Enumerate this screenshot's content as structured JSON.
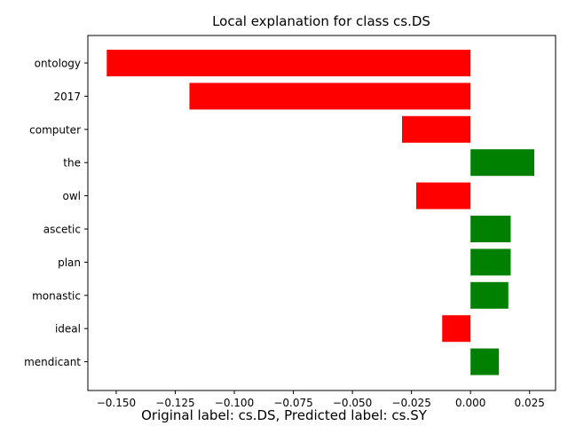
{
  "chart_data": {
    "type": "bar",
    "orientation": "horizontal",
    "title": "Local explanation for class cs.DS",
    "xlabel": "",
    "ylabel": "",
    "categories": [
      "ontology",
      "2017",
      "computer",
      "the",
      "owl",
      "ascetic",
      "plan",
      "monastic",
      "ideal",
      "mendicant"
    ],
    "values": [
      -0.154,
      -0.119,
      -0.029,
      0.027,
      -0.023,
      0.017,
      0.017,
      0.016,
      -0.012,
      0.012
    ],
    "xlim": [
      -0.162,
      0.036
    ],
    "xticks": [
      -0.15,
      -0.125,
      -0.1,
      -0.075,
      -0.05,
      -0.025,
      0.0,
      0.025
    ],
    "xtick_labels": [
      "−0.150",
      "−0.125",
      "−0.100",
      "−0.075",
      "−0.050",
      "−0.025",
      "0.000",
      "0.025"
    ],
    "grid": false,
    "colors": {
      "positive": "#008000",
      "negative": "#ff0000"
    }
  },
  "caption": "Original label: cs.DS, Predicted label: cs.SY"
}
